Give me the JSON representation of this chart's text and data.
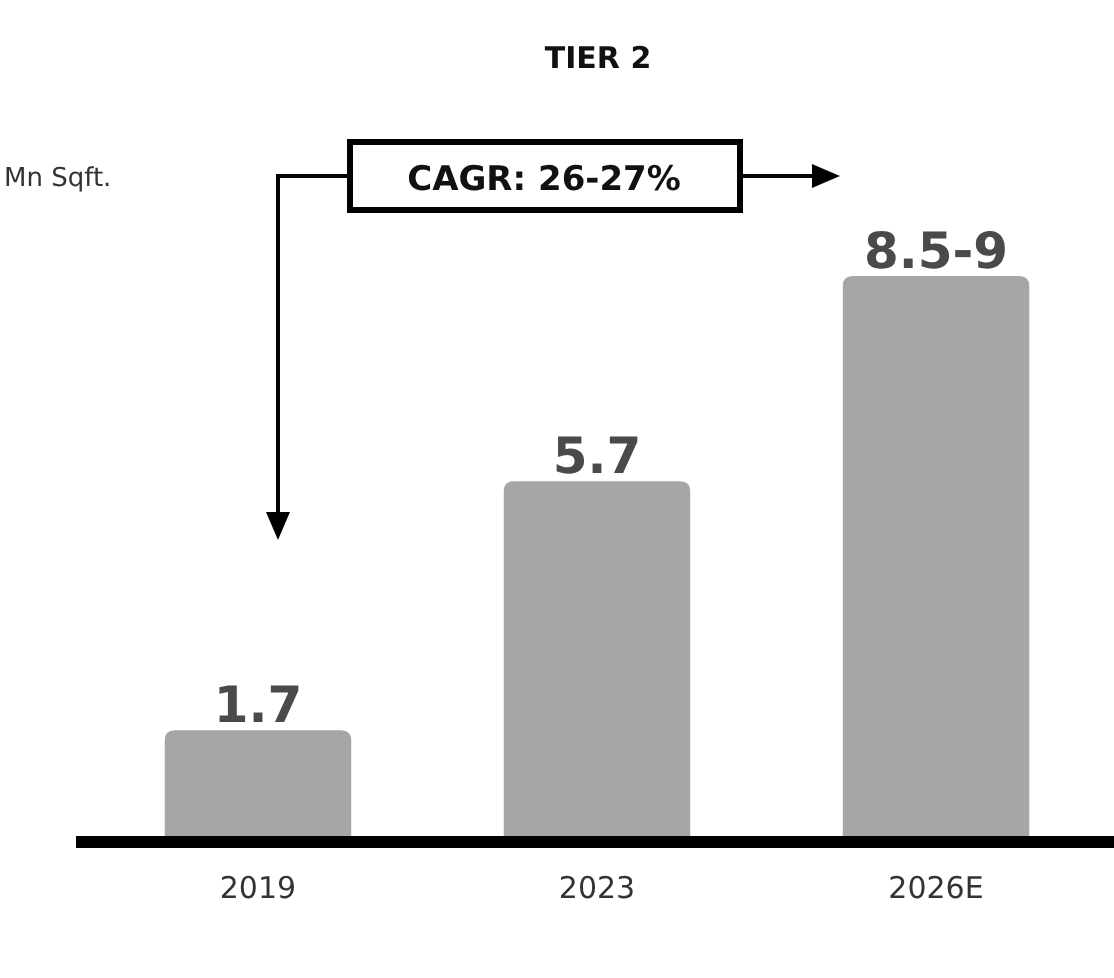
{
  "chart_data": {
    "type": "bar",
    "title": "TIER 2",
    "ylabel": "Mn Sqft.",
    "categories": [
      "2019",
      "2023",
      "2026E"
    ],
    "values": [
      1.7,
      5.7,
      9
    ],
    "value_labels": [
      "1.7",
      "5.7",
      "8.5-9"
    ],
    "color": "#a6a6a6",
    "annotations": [
      "CAGR: 26-27%"
    ]
  }
}
